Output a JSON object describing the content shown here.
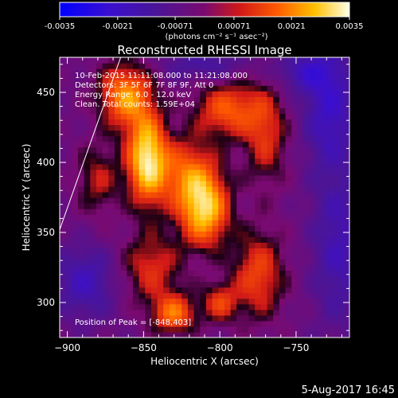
{
  "colorbar": {
    "ticks": [
      "-0.0035",
      "-0.0021",
      "-0.00071",
      "0.00071",
      "0.0021",
      "0.0035"
    ],
    "unit_label": "(photons cm⁻² s⁻¹ asec⁻²)",
    "range": [
      -0.0035,
      0.0035
    ]
  },
  "chart_data": {
    "type": "heatmap",
    "title": "Reconstructed RHESSI Image",
    "xlabel": "Heliocentric X (arcsec)",
    "ylabel": "Heliocentric Y (arcsec)",
    "xlim": [
      -905,
      -715
    ],
    "ylim": [
      275,
      475
    ],
    "x_ticks": [
      -900,
      -850,
      -800,
      -750
    ],
    "y_ticks": [
      300,
      350,
      400,
      450
    ],
    "annotations": [
      "10-Feb-2015 11:11:08.000 to 11:21:08.000",
      "Detectors: 3F 5F 6F 7F 8F 9F, Att 0",
      "Energy Range: 6.0 - 12.0 keV",
      "Clean.  Total counts: 1.59E+04"
    ],
    "peak_label": "Position of Peak = [-848,403]",
    "peak": [
      -848,
      403
    ],
    "limb_line": [
      [
        -905,
        352
      ],
      [
        -865,
        475
      ]
    ],
    "sources": [
      {
        "x": -848,
        "y": 403,
        "amp": 0.0035,
        "sx": 9,
        "sy": 22
      },
      {
        "x": -862,
        "y": 448,
        "amp": 0.0026,
        "sx": 12,
        "sy": 16
      },
      {
        "x": -810,
        "y": 366,
        "amp": 0.0031,
        "sx": 11,
        "sy": 18
      },
      {
        "x": -822,
        "y": 392,
        "amp": 0.002,
        "sx": 14,
        "sy": 18
      },
      {
        "x": -795,
        "y": 438,
        "amp": 0.002,
        "sx": 15,
        "sy": 14
      },
      {
        "x": -770,
        "y": 420,
        "amp": 0.0015,
        "sx": 10,
        "sy": 25
      },
      {
        "x": -775,
        "y": 320,
        "amp": 0.0018,
        "sx": 12,
        "sy": 22
      },
      {
        "x": -845,
        "y": 325,
        "amp": 0.0015,
        "sx": 14,
        "sy": 18
      },
      {
        "x": -830,
        "y": 292,
        "amp": 0.0022,
        "sx": 10,
        "sy": 10
      },
      {
        "x": -880,
        "y": 388,
        "amp": 0.0012,
        "sx": 10,
        "sy": 18
      },
      {
        "x": -800,
        "y": 300,
        "amp": 0.0016,
        "sx": 8,
        "sy": 10
      },
      {
        "x": -888,
        "y": 315,
        "amp": -0.0014,
        "sx": 14,
        "sy": 18
      },
      {
        "x": -728,
        "y": 440,
        "amp": -0.0016,
        "sx": 12,
        "sy": 30
      },
      {
        "x": -722,
        "y": 340,
        "amp": -0.0013,
        "sx": 12,
        "sy": 40
      },
      {
        "x": -810,
        "y": 470,
        "amp": -0.001,
        "sx": 20,
        "sy": 8
      },
      {
        "x": -745,
        "y": 465,
        "amp": -0.0012,
        "sx": 14,
        "sy": 10
      }
    ]
  },
  "footer": {
    "date": "5-Aug-2017 16:45"
  },
  "colors": {
    "background": "#000000",
    "foreground": "#ffffff"
  }
}
